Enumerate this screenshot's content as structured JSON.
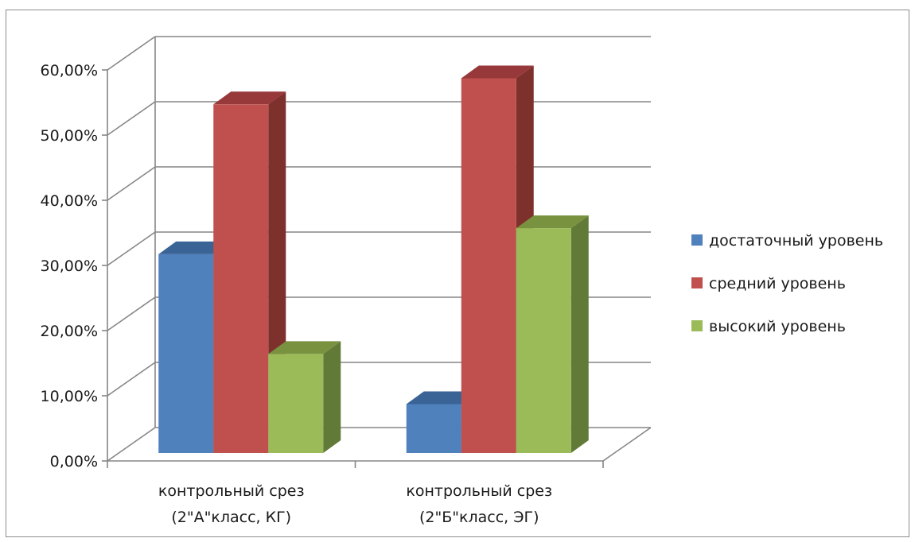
{
  "chart_data": {
    "type": "bar",
    "title": "",
    "xlabel": "",
    "ylabel": "",
    "ylim": [
      0,
      0.6
    ],
    "y_ticks": [
      "0,00%",
      "10,00%",
      "20,00%",
      "30,00%",
      "40,00%",
      "50,00%",
      "60,00%"
    ],
    "categories": [
      [
        "контрольный срез",
        "(2\"А\"класс, КГ)"
      ],
      [
        "контрольный срез",
        "(2\"Б\"класс, ЭГ)"
      ]
    ],
    "series": [
      {
        "name": "достаточный уровень",
        "values": [
          0.305,
          0.075
        ],
        "color": "#4f81bd",
        "top_color": "#3a6396",
        "side_color": "#385d8a"
      },
      {
        "name": "средний уровень",
        "values": [
          0.535,
          0.575
        ],
        "color": "#c0504d",
        "top_color": "#97393a",
        "side_color": "#7e302d"
      },
      {
        "name": "высокий уровень",
        "values": [
          0.152,
          0.345
        ],
        "color": "#9bbb59",
        "top_color": "#78923f",
        "side_color": "#617a37"
      }
    ],
    "grid": true,
    "legend_position": "right",
    "style": "3d-clustered-column"
  }
}
